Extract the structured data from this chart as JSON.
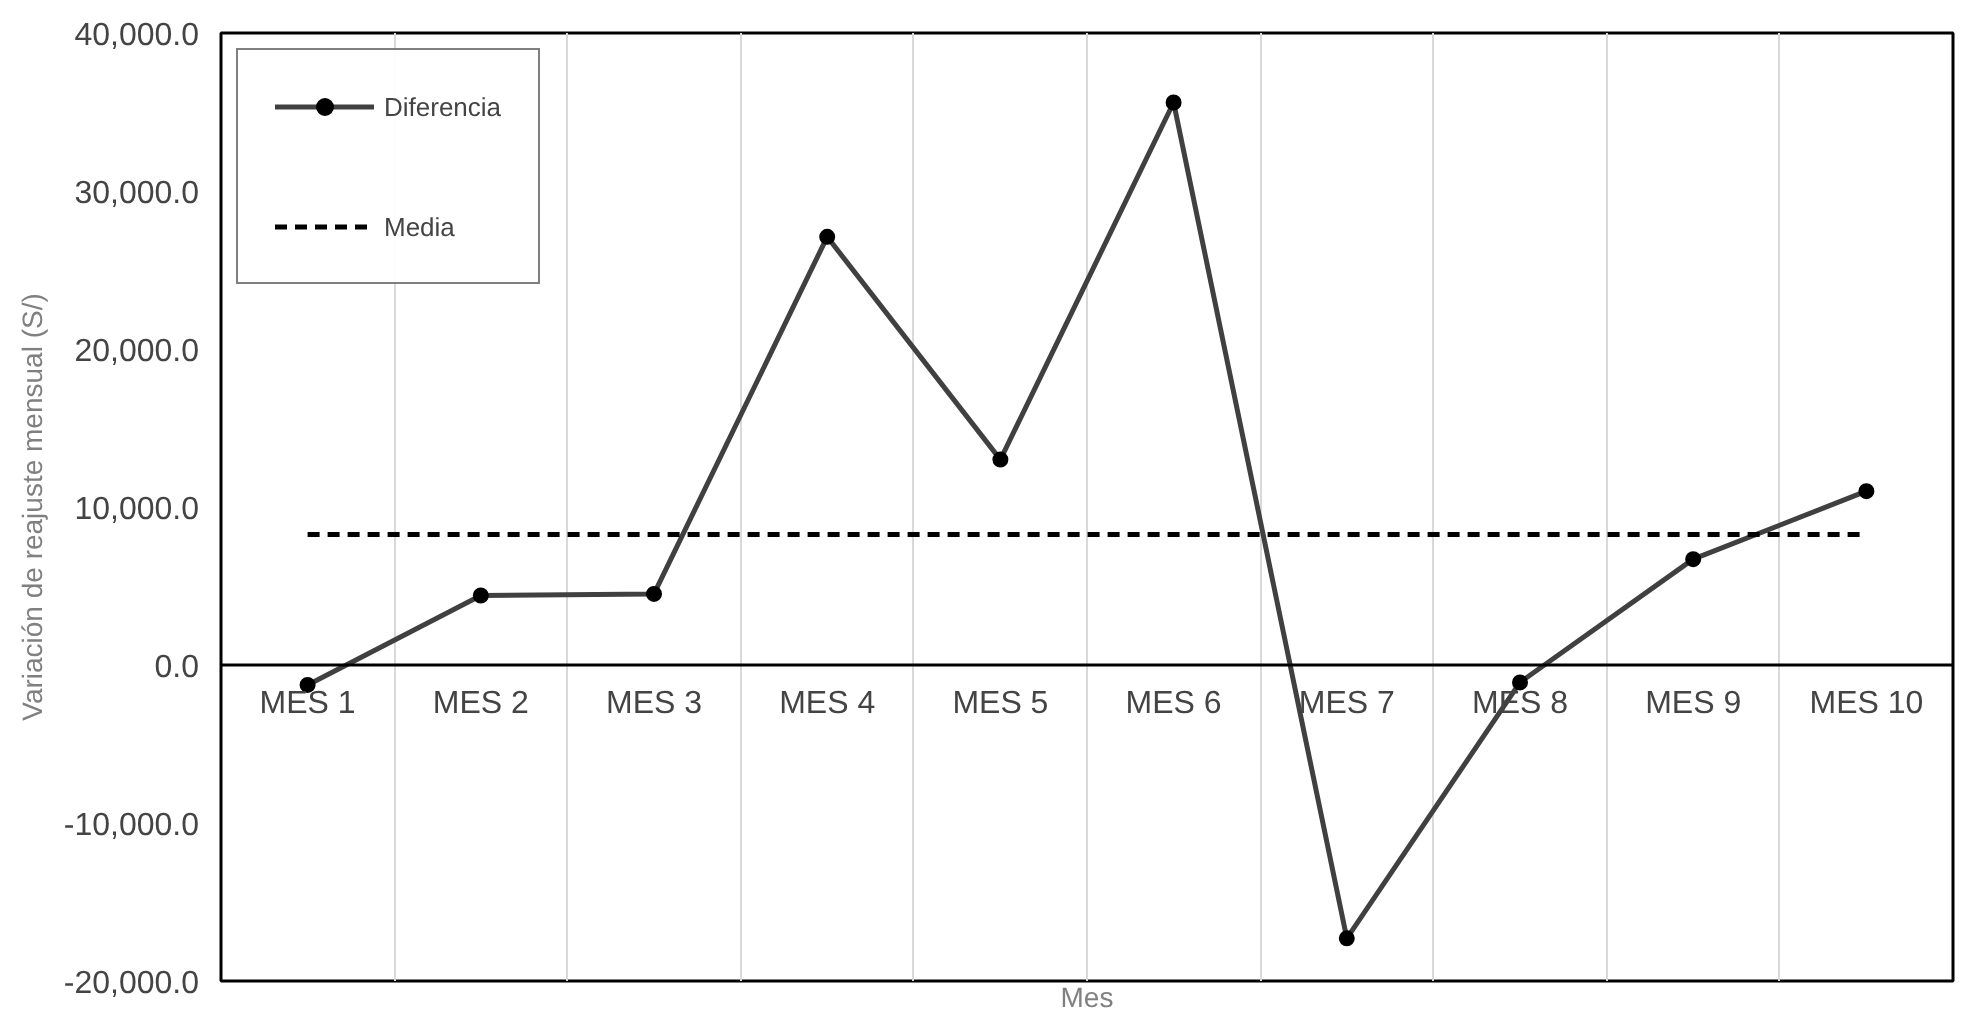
{
  "chart_data": {
    "type": "line",
    "xlabel": "Mes",
    "ylabel": "Variación de reajuste mensual (S/)",
    "categories": [
      "MES 1",
      "MES 2",
      "MES 3",
      "MES 4",
      "MES 5",
      "MES 6",
      "MES 7",
      "MES 8",
      "MES 9",
      "MES 10"
    ],
    "series": [
      {
        "name": "Diferencia",
        "color": "#404040",
        "values": [
          -1260,
          4400,
          4500,
          27100,
          13000,
          35600,
          -17300,
          -1100,
          6700,
          11000
        ]
      }
    ],
    "ref_lines": [
      {
        "axis": "y",
        "value": 8264,
        "label": "Media",
        "color": "#000000",
        "line_style": "dashed"
      }
    ],
    "ylim": [
      -20000,
      40000
    ],
    "yticks": [
      {
        "value": -20000,
        "label": "-20,000.0"
      },
      {
        "value": -10000,
        "label": "-10,000.0"
      },
      {
        "value": 0,
        "label": "0.0"
      },
      {
        "value": 10000,
        "label": "10,000.0"
      },
      {
        "value": 20000,
        "label": "20,000.0"
      },
      {
        "value": 30000,
        "label": "30,000.0"
      },
      {
        "value": 40000,
        "label": "40,000.0"
      }
    ],
    "grid": "x",
    "legend": "top left",
    "marker": "circle",
    "line_style": "solid"
  }
}
